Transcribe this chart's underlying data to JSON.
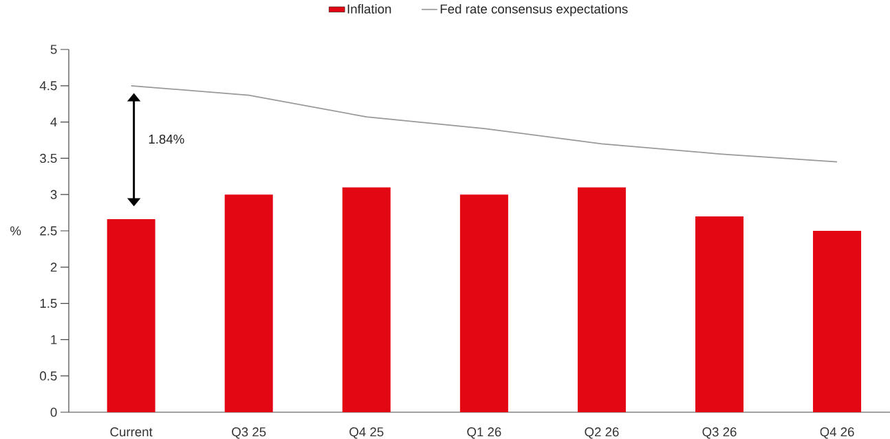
{
  "chart_data": {
    "type": "bar",
    "categories": [
      "Current",
      "Q3 25",
      "Q4 25",
      "Q1 26",
      "Q2 26",
      "Q3 26",
      "Q4 26"
    ],
    "series": [
      {
        "name": "Inflation",
        "color": "#e30613",
        "values": [
          2.66,
          3.0,
          3.1,
          3.0,
          3.1,
          2.7,
          2.5
        ]
      },
      {
        "name": "Fed rate consensus expectations",
        "type": "line",
        "color": "#999999",
        "values": [
          4.5,
          4.37,
          4.07,
          3.91,
          3.7,
          3.56,
          3.45
        ]
      }
    ],
    "ylabel": "%",
    "ylim": [
      0,
      5
    ],
    "yticks": [
      0,
      0.5,
      1,
      1.5,
      2,
      2.5,
      3,
      3.5,
      4,
      4.5,
      5
    ],
    "legend": "top",
    "marker": "none",
    "line_style": "solid",
    "annotations": [
      "1.84%"
    ]
  }
}
